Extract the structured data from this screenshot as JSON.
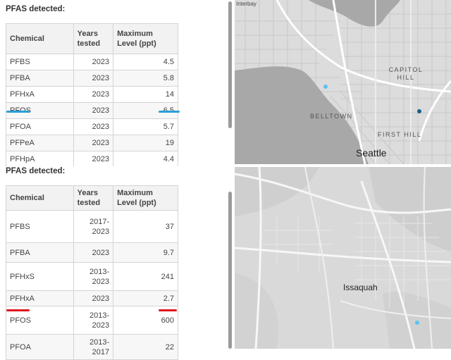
{
  "colors": {
    "highlight_blue": "#2a9fd8",
    "highlight_red": "#e0141e",
    "map_water": "#a8a8a8",
    "map_land": "#dcdcdc",
    "map_dot_light": "#5bc3ee",
    "map_dot_dark": "#17608a"
  },
  "top_section": {
    "title": "PFAS detected:",
    "headers": [
      "Chemical",
      "Years tested",
      "Maximum Level (ppt)"
    ],
    "rows": [
      {
        "chemical": "PFBS",
        "years": "2023",
        "max": "4.5"
      },
      {
        "chemical": "PFBA",
        "years": "2023",
        "max": "5.8"
      },
      {
        "chemical": "PFHxA",
        "years": "2023",
        "max": "14"
      },
      {
        "chemical": "PFOS",
        "years": "2023",
        "max": "6.5"
      },
      {
        "chemical": "PFOA",
        "years": "2023",
        "max": "5.7"
      },
      {
        "chemical": "PFPeA",
        "years": "2023",
        "max": "19"
      },
      {
        "chemical": "PFHpA",
        "years": "2023",
        "max": "4.4"
      }
    ],
    "highlighted_row": "PFOS"
  },
  "bottom_section": {
    "title": "PFAS detected:",
    "headers": [
      "Chemical",
      "Years tested",
      "Maximum Level (ppt)"
    ],
    "rows": [
      {
        "chemical": "PFBS",
        "years": "2017-2023",
        "max": "37"
      },
      {
        "chemical": "PFBA",
        "years": "2023",
        "max": "9.7"
      },
      {
        "chemical": "PFHxS",
        "years": "2013-2023",
        "max": "241"
      },
      {
        "chemical": "PFHxA",
        "years": "2023",
        "max": "2.7"
      },
      {
        "chemical": "PFOS",
        "years": "2013-2023",
        "max": "600"
      },
      {
        "chemical": "PFOA",
        "years": "2013-2017",
        "max": "22"
      }
    ],
    "highlighted_row": "PFOS"
  },
  "map_top": {
    "attribution": "Interbay",
    "labels": {
      "capitol_hill": "CAPITOL HILL",
      "belltown": "BELLTOWN",
      "first_hill": "FIRST HILL",
      "city": "Seattle"
    }
  },
  "map_bottom": {
    "labels": {
      "city": "Issaquah"
    }
  }
}
